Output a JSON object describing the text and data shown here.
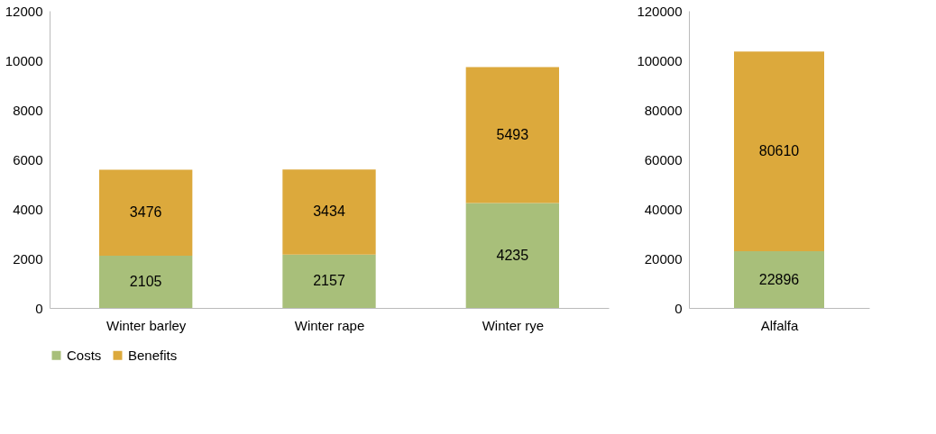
{
  "chart_data": [
    {
      "type": "bar",
      "stacked": true,
      "categories": [
        "Winter barley",
        "Winter rape",
        "Winter rye"
      ],
      "series": [
        {
          "name": "Costs",
          "color": "#a8bf7a",
          "values": [
            2105,
            2157,
            4235
          ]
        },
        {
          "name": "Benefits",
          "color": "#dca93c",
          "values": [
            3476,
            3434,
            5493
          ]
        }
      ],
      "ylim": [
        0,
        12000
      ],
      "yticks": [
        0,
        2000,
        4000,
        6000,
        8000,
        10000,
        12000
      ],
      "grid": false,
      "data_labels": true,
      "legend": "bottom"
    },
    {
      "type": "bar",
      "stacked": true,
      "categories": [
        "Alfalfa"
      ],
      "series": [
        {
          "name": "Costs",
          "color": "#a8bf7a",
          "values": [
            22896
          ]
        },
        {
          "name": "Benefits",
          "color": "#dca93c",
          "values": [
            80610
          ]
        }
      ],
      "ylim": [
        0,
        120000
      ],
      "yticks": [
        0,
        20000,
        40000,
        60000,
        80000,
        100000,
        120000
      ],
      "grid": false,
      "data_labels": true
    }
  ]
}
